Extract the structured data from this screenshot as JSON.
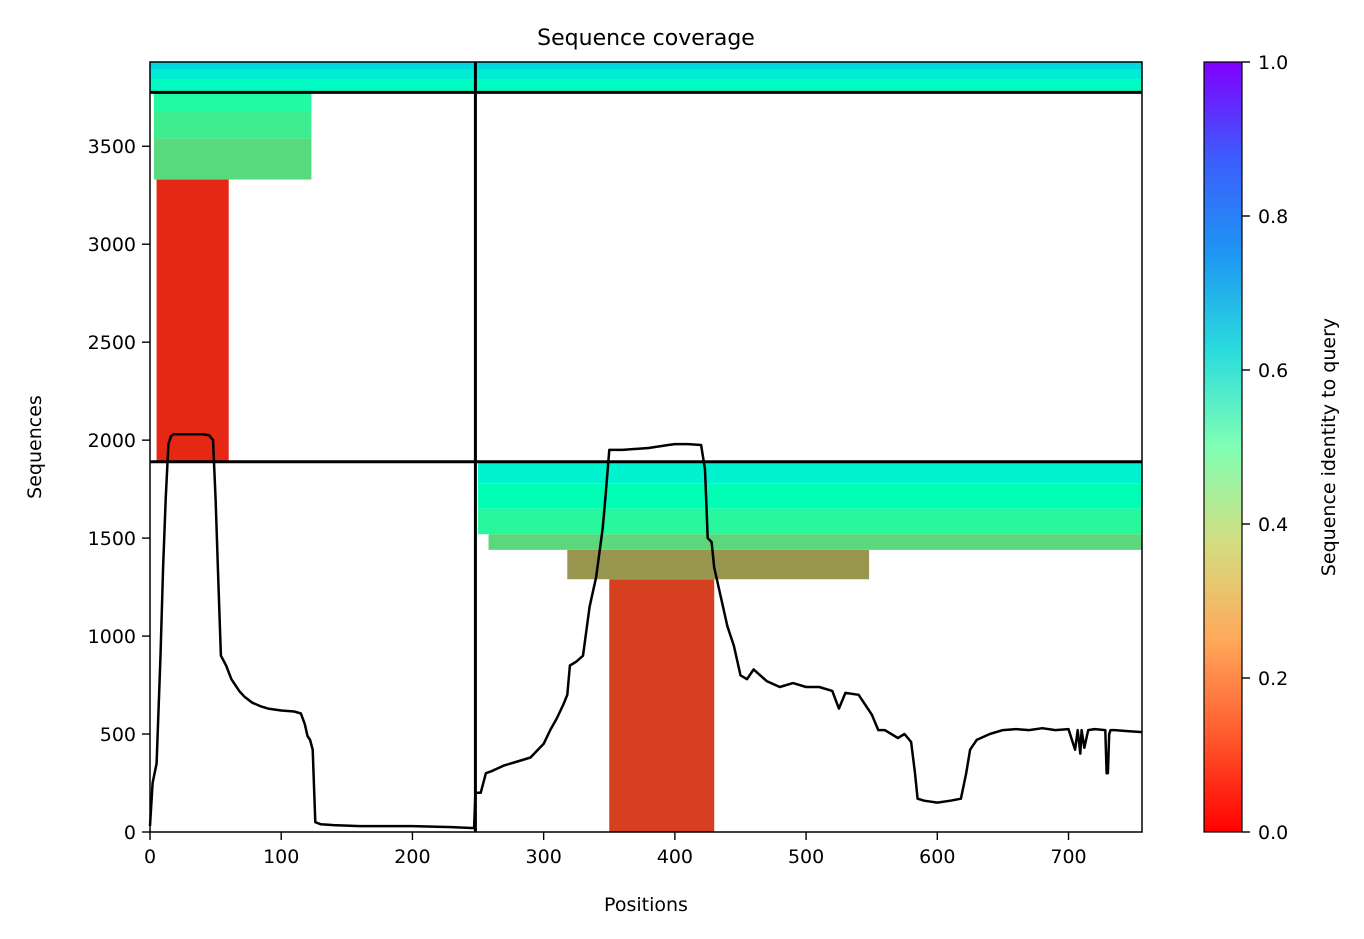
{
  "chart_data": {
    "type": "heatmap",
    "title": "Sequence coverage",
    "xlabel": "Positions",
    "ylabel": "Sequences",
    "xlim": [
      0,
      756
    ],
    "ylim": [
      0,
      3930
    ],
    "x_ticks": [
      "0",
      "100",
      "200",
      "300",
      "400",
      "500",
      "600",
      "700"
    ],
    "y_ticks": [
      "0",
      "500",
      "1000",
      "1500",
      "2000",
      "2500",
      "3000",
      "3500"
    ],
    "x_tick_values": [
      0,
      100,
      200,
      300,
      400,
      500,
      600,
      700
    ],
    "y_tick_values": [
      0,
      500,
      1000,
      1500,
      2000,
      2500,
      3000,
      3500
    ],
    "colorbar": {
      "label": "Sequence identity to query",
      "range": [
        0.0,
        1.0
      ],
      "ticks": [
        "0.0",
        "0.2",
        "0.4",
        "0.6",
        "0.8",
        "1.0"
      ],
      "tick_values": [
        0.0,
        0.2,
        0.4,
        0.6,
        0.8,
        1.0
      ],
      "colormap": "rainbow_r"
    },
    "block_separators": {
      "x": [
        248
      ],
      "y": [
        1890,
        3775
      ]
    },
    "alignment_blocks": [
      {
        "name": "chain-1",
        "x_range": [
          0,
          248
        ],
        "y_range": [
          1890,
          3775
        ],
        "bands": [
          {
            "y": [
              1890,
              3330
            ],
            "x": [
              5,
              60
            ],
            "identity": 0.05
          },
          {
            "y": [
              3330,
              3540
            ],
            "x": [
              3,
              123
            ],
            "identity": 0.33
          },
          {
            "y": [
              3540,
              3680
            ],
            "x": [
              3,
              123
            ],
            "identity": 0.38
          },
          {
            "y": [
              3680,
              3775
            ],
            "x": [
              3,
              123
            ],
            "identity": 0.44
          }
        ]
      },
      {
        "name": "chain-2",
        "x_range": [
          248,
          756
        ],
        "y_range": [
          0,
          1890
        ],
        "bands": [
          {
            "y": [
              0,
              1290
            ],
            "x": [
              350,
              430
            ],
            "identity": 0.08
          },
          {
            "y": [
              1290,
              1440
            ],
            "x": [
              318,
              548
            ],
            "identity": 0.2
          },
          {
            "y": [
              1440,
              1520
            ],
            "x": [
              258,
              756
            ],
            "identity": 0.32
          },
          {
            "y": [
              1520,
              1650
            ],
            "x": [
              250,
              756
            ],
            "identity": 0.42
          },
          {
            "y": [
              1650,
              1780
            ],
            "x": [
              250,
              756
            ],
            "identity": 0.5
          },
          {
            "y": [
              1780,
              1890
            ],
            "x": [
              250,
              756
            ],
            "identity": 0.6
          }
        ]
      },
      {
        "name": "paired",
        "x_range": [
          0,
          756
        ],
        "y_range": [
          3775,
          3930
        ],
        "bands": [
          {
            "y": [
              3775,
              3840
            ],
            "x": [
              0,
              756
            ],
            "identity": 0.55
          },
          {
            "y": [
              3840,
              3890
            ],
            "x": [
              0,
              756
            ],
            "identity": 0.62
          },
          {
            "y": [
              3890,
              3930
            ],
            "x": [
              0,
              756
            ],
            "identity": 0.68
          }
        ]
      }
    ],
    "coverage_line": {
      "x": [
        0,
        2,
        5,
        8,
        10,
        12,
        14,
        16,
        18,
        22,
        30,
        40,
        45,
        48,
        50,
        52,
        54,
        58,
        62,
        68,
        72,
        78,
        85,
        90,
        100,
        110,
        115,
        118,
        120,
        122,
        124,
        126,
        130,
        140,
        160,
        200,
        230,
        247,
        248,
        252,
        256,
        260,
        270,
        280,
        290,
        300,
        305,
        310,
        315,
        318,
        320,
        325,
        330,
        335,
        340,
        345,
        347,
        350,
        360,
        380,
        395,
        400,
        410,
        420,
        423,
        425,
        428,
        430,
        435,
        440,
        445,
        450,
        455,
        460,
        465,
        470,
        480,
        490,
        500,
        510,
        520,
        525,
        530,
        540,
        550,
        555,
        560,
        570,
        575,
        580,
        583,
        585,
        590,
        600,
        610,
        618,
        622,
        625,
        630,
        640,
        650,
        660,
        670,
        680,
        690,
        700,
        705,
        707,
        709,
        710,
        712,
        715,
        720,
        728,
        729,
        730,
        731,
        732,
        735,
        745,
        756
      ],
      "y": [
        30,
        250,
        350,
        900,
        1350,
        1700,
        1980,
        2020,
        2030,
        2030,
        2030,
        2030,
        2025,
        2000,
        1700,
        1300,
        900,
        850,
        780,
        720,
        690,
        660,
        640,
        630,
        620,
        615,
        605,
        550,
        490,
        470,
        420,
        50,
        40,
        35,
        30,
        30,
        25,
        20,
        200,
        200,
        300,
        310,
        340,
        360,
        380,
        450,
        520,
        580,
        650,
        700,
        850,
        870,
        900,
        1150,
        1300,
        1550,
        1700,
        1950,
        1950,
        1960,
        1975,
        1980,
        1980,
        1975,
        1850,
        1500,
        1480,
        1350,
        1200,
        1050,
        950,
        800,
        780,
        830,
        800,
        770,
        740,
        760,
        740,
        740,
        720,
        630,
        710,
        700,
        600,
        520,
        520,
        480,
        500,
        460,
        300,
        170,
        160,
        150,
        160,
        170,
        300,
        420,
        470,
        500,
        520,
        525,
        520,
        530,
        520,
        525,
        420,
        520,
        400,
        520,
        430,
        520,
        525,
        520,
        300,
        300,
        500,
        520,
        520,
        515,
        510
      ]
    }
  }
}
